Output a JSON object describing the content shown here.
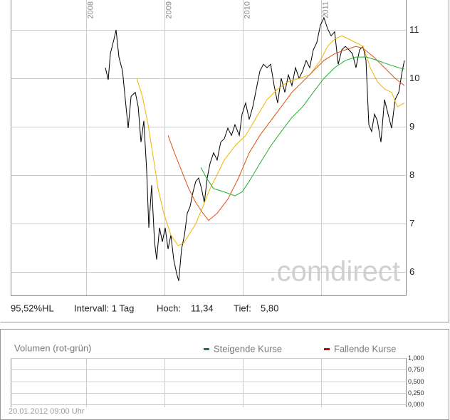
{
  "chart_data": [
    {
      "type": "line",
      "xlim": [
        2007.036,
        2012.082
      ],
      "xticks": [
        2008,
        2009,
        2010,
        2011
      ],
      "ylim": [
        5.51,
        11.62
      ],
      "yticks": [
        6,
        7,
        8,
        9,
        10,
        11
      ],
      "grid": true,
      "watermark": ".comdirect",
      "annotations": [
        "95,52%HL",
        "Intervall: 1 Tag",
        "Hoch:",
        "11,34",
        "Tief:",
        "5,80"
      ],
      "series": [
        {
          "color": "#000000",
          "x": [
            2008.245,
            2008.282,
            2008.309,
            2008.355,
            2008.382,
            2008.418,
            2008.464,
            2008.5,
            2008.536,
            2008.573,
            2008.627,
            2008.664,
            2008.7,
            2008.736,
            2008.773,
            2008.8,
            2008.836,
            2008.873,
            2008.9,
            2008.936,
            2008.973,
            2009.009,
            2009.045,
            2009.082,
            2009.118,
            2009.155,
            2009.182,
            2009.218,
            2009.255,
            2009.291,
            2009.327,
            2009.364,
            2009.4,
            2009.436,
            2009.473,
            2009.509,
            2009.545,
            2009.582,
            2009.627,
            2009.673,
            2009.718,
            2009.764,
            2009.809,
            2009.855,
            2009.9,
            2009.955,
            2009.991,
            2010.036,
            2010.082,
            2010.127,
            2010.173,
            2010.218,
            2010.264,
            2010.309,
            2010.355,
            2010.4,
            2010.445,
            2010.491,
            2010.536,
            2010.582,
            2010.627,
            2010.673,
            2010.718,
            2010.764,
            2010.809,
            2010.855,
            2010.9,
            2010.945,
            2010.991,
            2011.036,
            2011.082,
            2011.127,
            2011.173,
            2011.218,
            2011.264,
            2011.309,
            2011.355,
            2011.4,
            2011.445,
            2011.491,
            2011.536,
            2011.573,
            2011.609,
            2011.645,
            2011.682,
            2011.718,
            2011.764,
            2011.809,
            2011.855,
            2011.9,
            2011.945,
            2011.991,
            2012.036,
            2012.064
          ],
          "values": [
            10.22,
            9.97,
            10.51,
            10.81,
            11.0,
            10.44,
            10.15,
            9.56,
            8.97,
            9.63,
            9.71,
            9.41,
            8.68,
            9.12,
            8.09,
            6.91,
            7.79,
            6.62,
            6.25,
            6.91,
            6.62,
            6.91,
            6.47,
            6.76,
            6.25,
            5.96,
            5.81,
            6.47,
            6.76,
            7.21,
            7.35,
            7.65,
            7.87,
            7.94,
            7.72,
            7.43,
            7.94,
            8.24,
            8.46,
            8.31,
            8.68,
            8.75,
            8.97,
            8.82,
            9.04,
            8.82,
            9.26,
            9.49,
            9.15,
            9.41,
            9.78,
            10.15,
            10.29,
            10.22,
            10.29,
            9.85,
            9.49,
            10.0,
            9.71,
            10.07,
            9.85,
            10.22,
            10.0,
            10.15,
            10.37,
            10.22,
            10.59,
            10.74,
            11.1,
            11.25,
            11.03,
            10.88,
            10.96,
            10.29,
            10.59,
            10.66,
            10.59,
            10.51,
            10.22,
            10.59,
            10.66,
            10.37,
            9.04,
            8.9,
            9.26,
            9.12,
            8.68,
            9.56,
            9.26,
            8.97,
            9.56,
            9.71,
            10.15,
            10.37
          ]
        },
        {
          "color": "#f0b400",
          "x": [
            2008.645,
            2008.718,
            2008.791,
            2008.855,
            2008.918,
            2008.991,
            2009.082,
            2009.173,
            2009.245,
            2009.309,
            2009.4,
            2009.491,
            2009.582,
            2009.673,
            2009.764,
            2009.9,
            2010.036,
            2010.173,
            2010.309,
            2010.445,
            2010.582,
            2010.718,
            2010.855,
            2010.991,
            2011.082,
            2011.173,
            2011.264,
            2011.355,
            2011.445,
            2011.536,
            2011.627,
            2011.718,
            2011.809,
            2011.9,
            2011.973,
            2012.064
          ],
          "values": [
            10.0,
            9.63,
            9.04,
            8.38,
            7.72,
            7.21,
            6.76,
            6.54,
            6.59,
            6.76,
            6.99,
            7.35,
            7.72,
            8.01,
            8.31,
            8.6,
            8.82,
            9.19,
            9.56,
            9.78,
            9.93,
            10.0,
            10.07,
            10.37,
            10.66,
            10.81,
            10.88,
            10.81,
            10.74,
            10.66,
            10.22,
            9.93,
            9.78,
            9.71,
            9.41,
            9.49
          ]
        },
        {
          "color": "#e05010",
          "x": [
            2009.045,
            2009.127,
            2009.218,
            2009.309,
            2009.4,
            2009.491,
            2009.564,
            2009.673,
            2009.809,
            2009.945,
            2010.082,
            2010.218,
            2010.355,
            2010.491,
            2010.627,
            2010.764,
            2010.9,
            2011.036,
            2011.173,
            2011.309,
            2011.445,
            2011.536,
            2011.673,
            2011.809,
            2011.945,
            2012.064
          ],
          "values": [
            8.82,
            8.46,
            8.09,
            7.72,
            7.43,
            7.21,
            7.06,
            7.21,
            7.5,
            7.94,
            8.46,
            8.82,
            9.12,
            9.41,
            9.71,
            9.93,
            10.15,
            10.37,
            10.51,
            10.59,
            10.66,
            10.62,
            10.44,
            10.22,
            10.0,
            9.85
          ]
        },
        {
          "color": "#20b030",
          "x": [
            2009.464,
            2009.536,
            2009.627,
            2009.764,
            2009.9,
            2009.991,
            2010.082,
            2010.218,
            2010.355,
            2010.491,
            2010.627,
            2010.764,
            2010.9,
            2011.036,
            2011.173,
            2011.309,
            2011.445,
            2011.582,
            2011.718,
            2011.855,
            2011.991,
            2012.064
          ],
          "values": [
            8.16,
            7.94,
            7.72,
            7.65,
            7.57,
            7.65,
            7.87,
            8.24,
            8.6,
            8.9,
            9.19,
            9.41,
            9.71,
            10.0,
            10.22,
            10.37,
            10.44,
            10.44,
            10.37,
            10.29,
            10.22,
            10.19
          ]
        }
      ]
    },
    {
      "type": "bar",
      "title": "Volumen (rot-grün)",
      "xlim": [
        2007.036,
        2012.082
      ],
      "xticks": [
        2008,
        2009,
        2010,
        2011
      ],
      "ylim": [
        0,
        1
      ],
      "yticks": [
        {
          "value": 1,
          "label": "1,000"
        },
        {
          "value": 0.75,
          "label": "0,750"
        },
        {
          "value": 0.5,
          "label": "0,500"
        },
        {
          "value": 0.25,
          "label": "0,250"
        },
        {
          "value": 0,
          "label": "0,000"
        }
      ],
      "grid": true,
      "series": [
        {
          "name": "Steigende Kurse",
          "color": "#1a7f3c",
          "values": []
        },
        {
          "name": "Fallende Kurse",
          "color": "#c00000",
          "values": []
        }
      ],
      "footer": "20.01.2012 09:00 Uhr"
    }
  ]
}
